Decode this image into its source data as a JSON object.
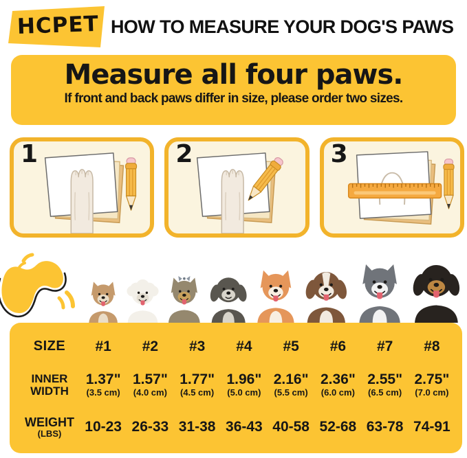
{
  "header": {
    "logo_text": "HCPET",
    "title": "HOW TO MEASURE YOUR DOG'S PAWS"
  },
  "banner": {
    "title": "Measure all four paws.",
    "subtitle": "If front and back paws differ in size, please order two sizes."
  },
  "steps": [
    {
      "number": "1",
      "icon": "paw-on-paper-icon"
    },
    {
      "number": "2",
      "icon": "trace-paw-with-pencil-icon"
    },
    {
      "number": "3",
      "icon": "measure-with-ruler-icon"
    }
  ],
  "doodle": {
    "icon": "paw-swoosh-doodle-icon"
  },
  "dogs": [
    {
      "breed": "chihuahua",
      "height": 78,
      "ears": "pointy",
      "tongue": true,
      "fluffy": false,
      "blaze": false,
      "bow": false,
      "chest": true,
      "colors": {
        "main": "#C59A6C",
        "accent": "#EADDC8"
      }
    },
    {
      "breed": "bichon-frise",
      "height": 82,
      "ears": "round",
      "tongue": true,
      "fluffy": true,
      "blaze": false,
      "bow": false,
      "chest": false,
      "colors": {
        "main": "#F3F0E9",
        "accent": "#E4DED1"
      }
    },
    {
      "breed": "yorkshire-terrier",
      "height": 86,
      "ears": "pointy",
      "tongue": true,
      "fluffy": false,
      "blaze": false,
      "bow": true,
      "chest": false,
      "colors": {
        "main": "#95886E",
        "accent": "#C8A15C"
      }
    },
    {
      "breed": "miniature-schnauzer",
      "height": 92,
      "ears": "floppy",
      "tongue": false,
      "fluffy": false,
      "blaze": false,
      "bow": false,
      "chest": true,
      "colors": {
        "main": "#59564F",
        "accent": "#D8D4CA"
      }
    },
    {
      "breed": "shiba-inu",
      "height": 100,
      "ears": "pointy",
      "tongue": true,
      "fluffy": false,
      "blaze": false,
      "bow": false,
      "chest": true,
      "colors": {
        "main": "#E5965A",
        "accent": "#F8EFE2"
      }
    },
    {
      "breed": "australian-shepherd",
      "height": 104,
      "ears": "floppy",
      "tongue": true,
      "fluffy": false,
      "blaze": true,
      "bow": false,
      "chest": true,
      "colors": {
        "main": "#7E573B",
        "accent": "#F1EAE0"
      }
    },
    {
      "breed": "siberian-husky",
      "height": 112,
      "ears": "pointy",
      "tongue": true,
      "fluffy": false,
      "blaze": false,
      "bow": false,
      "chest": true,
      "colors": {
        "main": "#70747A",
        "accent": "#F2F2F2"
      }
    },
    {
      "breed": "rottweiler",
      "height": 118,
      "ears": "floppy",
      "tongue": true,
      "fluffy": false,
      "blaze": false,
      "bow": false,
      "chest": false,
      "colors": {
        "main": "#28231F",
        "accent": "#BD8742"
      }
    }
  ],
  "size_table": {
    "rows": {
      "size": {
        "label": "SIZE",
        "values": [
          "#1",
          "#2",
          "#3",
          "#4",
          "#5",
          "#6",
          "#7",
          "#8"
        ]
      },
      "inner_width": {
        "label_line1": "INNER",
        "label_line2": "WIDTH",
        "cells": [
          {
            "in": "1.37\"",
            "cm": "(3.5 cm)"
          },
          {
            "in": "1.57\"",
            "cm": "(4.0 cm)"
          },
          {
            "in": "1.77\"",
            "cm": "(4.5 cm)"
          },
          {
            "in": "1.96\"",
            "cm": "(5.0 cm)"
          },
          {
            "in": "2.16\"",
            "cm": "(5.5 cm)"
          },
          {
            "in": "2.36\"",
            "cm": "(6.0 cm)"
          },
          {
            "in": "2.55\"",
            "cm": "(6.5 cm)"
          },
          {
            "in": "2.75\"",
            "cm": "(7.0 cm)"
          }
        ]
      },
      "weight": {
        "label_line1": "WEIGHT",
        "label_line2": "(LBS)",
        "values": [
          "10-23",
          "26-33",
          "31-38",
          "36-43",
          "40-58",
          "52-68",
          "63-78",
          "74-91"
        ]
      }
    }
  },
  "colors": {
    "brand_yellow": "#FCC433",
    "step_border": "#F2B32B",
    "step_background": "#FBF4DF",
    "text": "#161616"
  }
}
